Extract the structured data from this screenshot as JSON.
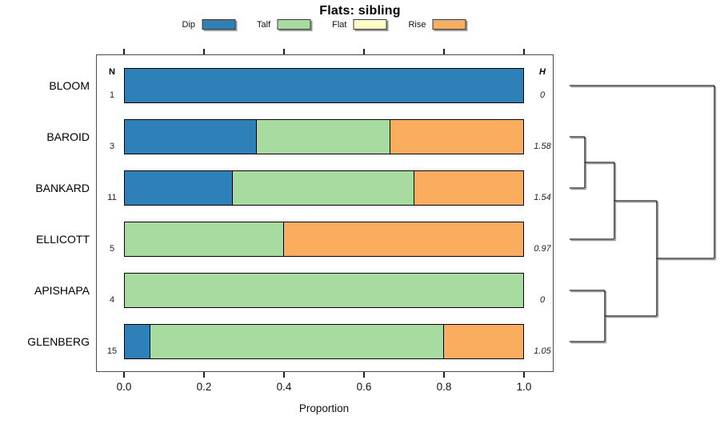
{
  "chart_data": {
    "type": "bar",
    "subtype": "horizontal-stacked-proportion-with-dendrogram",
    "title": "Flats: sibling",
    "xlabel": "Proportion",
    "xlim": [
      0.0,
      1.0
    ],
    "xticks": [
      {
        "value": 0.0,
        "label": "0.0"
      },
      {
        "value": 0.2,
        "label": "0.2"
      },
      {
        "value": 0.4,
        "label": "0.4"
      },
      {
        "value": 0.6,
        "label": "0.6"
      },
      {
        "value": 0.8,
        "label": "0.8"
      },
      {
        "value": 1.0,
        "label": "1.0"
      }
    ],
    "grid": false,
    "legend_position": "top",
    "columns": {
      "left_header": "N",
      "right_header": "H"
    },
    "categories": [
      "BLOOM",
      "BAROID",
      "BANKARD",
      "ELLICOTT",
      "APISHAPA",
      "GLENBERG"
    ],
    "n_values": [
      1,
      3,
      11,
      5,
      4,
      15
    ],
    "h_values": [
      "0",
      "1.58",
      "1.54",
      "0.97",
      "0",
      "1.05"
    ],
    "series": [
      {
        "name": "Dip",
        "color": "#2E80B8",
        "values": [
          1.0,
          0.3333,
          0.2727,
          0.0,
          0.0,
          0.0667
        ]
      },
      {
        "name": "Talf",
        "color": "#A7DBA0",
        "values": [
          0.0,
          0.3334,
          0.4546,
          0.4,
          1.0,
          0.7333
        ]
      },
      {
        "name": "Flat",
        "color": "#FFFFC3",
        "values": [
          0.0,
          0.0,
          0.0,
          0.0,
          0.0,
          0.0
        ]
      },
      {
        "name": "Rise",
        "color": "#FBAD5E",
        "values": [
          0.0,
          0.3333,
          0.2727,
          0.6,
          0.0,
          0.2
        ]
      }
    ],
    "dendrogram": {
      "side": "right",
      "leaf_order": [
        "BLOOM",
        "BAROID",
        "BANKARD",
        "ELLICOTT",
        "APISHAPA",
        "GLENBERG"
      ],
      "merges": [
        {
          "joins": [
            "BAROID",
            "BANKARD"
          ],
          "height_fraction": 0.105
        },
        {
          "joins": [
            "BAROID+BANKARD",
            "ELLICOTT"
          ],
          "height_fraction": 0.309
        },
        {
          "joins": [
            "APISHAPA",
            "GLENBERG"
          ],
          "height_fraction": 0.243
        },
        {
          "joins": [
            "BAROID+BANKARD+ELLICOTT",
            "APISHAPA+GLENBERG"
          ],
          "height_fraction": 0.602
        },
        {
          "joins": [
            "BLOOM",
            "ALL-OTHERS"
          ],
          "height_fraction": 1.0
        }
      ],
      "segments": [
        {
          "x1": 0,
          "y1": 0,
          "x2": 1.0,
          "y2": 0
        },
        {
          "x1": 0,
          "y1": 1,
          "x2": 0.105,
          "y2": 1
        },
        {
          "x1": 0,
          "y1": 2,
          "x2": 0.105,
          "y2": 2
        },
        {
          "x1": 0.105,
          "y1": 1,
          "x2": 0.105,
          "y2": 2
        },
        {
          "x1": 0.105,
          "y1": 1.5,
          "x2": 0.309,
          "y2": 1.5
        },
        {
          "x1": 0,
          "y1": 3,
          "x2": 0.309,
          "y2": 3
        },
        {
          "x1": 0.309,
          "y1": 1.5,
          "x2": 0.309,
          "y2": 3
        },
        {
          "x1": 0.309,
          "y1": 2.25,
          "x2": 0.602,
          "y2": 2.25
        },
        {
          "x1": 0,
          "y1": 4,
          "x2": 0.243,
          "y2": 4
        },
        {
          "x1": 0,
          "y1": 5,
          "x2": 0.243,
          "y2": 5
        },
        {
          "x1": 0.243,
          "y1": 4,
          "x2": 0.243,
          "y2": 5
        },
        {
          "x1": 0.243,
          "y1": 4.5,
          "x2": 0.602,
          "y2": 4.5
        },
        {
          "x1": 0.602,
          "y1": 2.25,
          "x2": 0.602,
          "y2": 4.5
        },
        {
          "x1": 0.602,
          "y1": 3.375,
          "x2": 1.0,
          "y2": 3.375
        },
        {
          "x1": 1.0,
          "y1": 0,
          "x2": 1.0,
          "y2": 3.375
        }
      ]
    }
  },
  "legend": {
    "items": [
      {
        "label": "Dip",
        "color": "#2E80B8"
      },
      {
        "label": "Talf",
        "color": "#A7DBA0"
      },
      {
        "label": "Flat",
        "color": "#FFFFC3"
      },
      {
        "label": "Rise",
        "color": "#FBAD5E"
      }
    ]
  },
  "colors": {
    "dip": "#2E80B8",
    "talf": "#A7DBA0",
    "flat": "#FFFFC3",
    "rise": "#FBAD5E",
    "bar_border": "#000000",
    "plot_border": "#4d4d4d",
    "dendrogram_line": "#1c1c1c",
    "dendrogram_shadow": "#9a9a9a",
    "background": "#ffffff"
  }
}
